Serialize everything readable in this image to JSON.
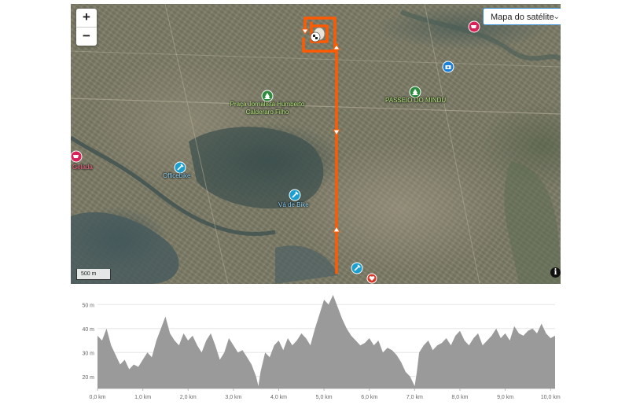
{
  "map": {
    "map_type_label": "Mapa do satélite",
    "zoom_in_label": "+",
    "zoom_out_label": "−",
    "scale_label": "500 m",
    "info_label": "i",
    "pois": [
      {
        "name": "Praça Jornalista Humberto Calderaro Filho",
        "lines": [
          "Praça Jornalista Humberto",
          "Calderaro Filho"
        ],
        "kind": "park",
        "color": "#2e8b3d"
      },
      {
        "name": "PASSEIO DO MINDU",
        "lines": [
          "PASSEIO DO MINDÚ"
        ],
        "kind": "park",
        "color": "#2e8b3d"
      },
      {
        "name": "Officebike",
        "lines": [
          "Officebike"
        ],
        "kind": "repair",
        "color": "#1a9fd0"
      },
      {
        "name": "Vá de Bike",
        "lines": [
          "Vá de Bike"
        ],
        "kind": "repair",
        "color": "#1a9fd0"
      },
      {
        "name": "Gelada",
        "lines": [
          "Gelada"
        ],
        "kind": "shop",
        "color": "#d6245a"
      }
    ],
    "route_color": "#ff5a00"
  },
  "chart_data": {
    "type": "area",
    "title": "",
    "xlabel": "",
    "ylabel": "",
    "xlim": [
      0,
      10.1
    ],
    "ylim": [
      15,
      55
    ],
    "x_ticks": [
      "0,0 km",
      "1,0 km",
      "2,0 km",
      "3,0 km",
      "4,0 km",
      "5,0 km",
      "6,0 km",
      "7,0 km",
      "8,0 km",
      "9,0 km",
      "10,0 km"
    ],
    "y_ticks": [
      "20 m",
      "30 m",
      "40 m",
      "50 m"
    ],
    "y_tick_values": [
      20,
      30,
      40,
      50
    ],
    "fill_color": "#9a9a9a",
    "series": [
      {
        "x": [
          0,
          0.1,
          0.2,
          0.3,
          0.4,
          0.5,
          0.6,
          0.7,
          0.8,
          0.9,
          1.0,
          1.1,
          1.2,
          1.3,
          1.4,
          1.5,
          1.6,
          1.7,
          1.8,
          1.9,
          2.0,
          2.1,
          2.2,
          2.3,
          2.4,
          2.5,
          2.6,
          2.7,
          2.8,
          2.9,
          3.0,
          3.1,
          3.2,
          3.3,
          3.4,
          3.5,
          3.55,
          3.6,
          3.7,
          3.8,
          3.9,
          4.0,
          4.1,
          4.2,
          4.3,
          4.4,
          4.5,
          4.6,
          4.7,
          4.8,
          4.9,
          5.0,
          5.1,
          5.2,
          5.3,
          5.4,
          5.5,
          5.6,
          5.7,
          5.8,
          5.9,
          6.0,
          6.1,
          6.2,
          6.3,
          6.4,
          6.5,
          6.6,
          6.7,
          6.8,
          6.9,
          7.0,
          7.05,
          7.1,
          7.2,
          7.3,
          7.4,
          7.5,
          7.6,
          7.7,
          7.8,
          7.9,
          8.0,
          8.1,
          8.2,
          8.3,
          8.4,
          8.5,
          8.6,
          8.7,
          8.8,
          8.9,
          9.0,
          9.1,
          9.2,
          9.3,
          9.4,
          9.5,
          9.6,
          9.7,
          9.8,
          9.9,
          10.0,
          10.1
        ],
        "values": [
          37,
          35,
          40,
          33,
          29,
          25,
          27,
          23,
          25,
          24,
          27,
          30,
          28,
          35,
          40,
          45,
          38,
          35,
          33,
          38,
          35,
          37,
          33,
          30,
          35,
          38,
          33,
          27,
          30,
          36,
          33,
          30,
          31,
          28,
          25,
          20,
          16,
          22,
          30,
          28,
          33,
          35,
          31,
          36,
          33,
          35,
          38,
          36,
          33,
          40,
          46,
          52,
          50,
          54,
          49,
          44,
          40,
          37,
          35,
          33,
          34,
          36,
          33,
          35,
          30,
          32,
          31,
          29,
          26,
          22,
          20,
          16,
          22,
          30,
          33,
          35,
          31,
          33,
          34,
          36,
          33,
          37,
          39,
          35,
          33,
          36,
          38,
          33,
          35,
          37,
          40,
          36,
          38,
          35,
          41,
          38,
          37,
          39,
          40,
          38,
          42,
          38,
          36,
          37
        ]
      }
    ]
  }
}
